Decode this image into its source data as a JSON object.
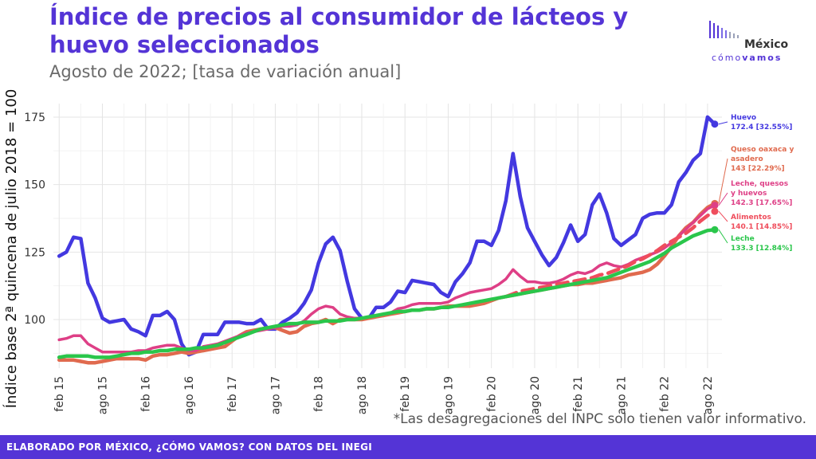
{
  "header": {
    "title": "Índice de precios al consumidor de lácteos y huevo seleccionados",
    "subtitle": "Agosto de 2022; [tasa de variación anual]"
  },
  "logo": {
    "word": "México",
    "sub_a": "cómo",
    "sub_b": "vamos"
  },
  "note": "*Las desagregaciones del INPC solo tienen valor informativo.",
  "footer": {
    "text": "ELABORADO POR MÉXICO, ¿CÓMO VAMOS? CON DATOS DEL INEGI"
  },
  "chart_data": {
    "type": "line",
    "ylabel": "Índice base 2ª quincena de julio 2018 = 100",
    "ylim": [
      82,
      180
    ],
    "yticks": [
      100,
      125,
      150,
      175
    ],
    "xlim": [
      -0.8,
      92
    ],
    "xticks": [
      {
        "label": "feb 15",
        "i": 0
      },
      {
        "label": "ago 15",
        "i": 6
      },
      {
        "label": "feb 16",
        "i": 12
      },
      {
        "label": "ago 16",
        "i": 18
      },
      {
        "label": "feb 17",
        "i": 24
      },
      {
        "label": "ago 17",
        "i": 30
      },
      {
        "label": "feb 18",
        "i": 36
      },
      {
        "label": "ago 18",
        "i": 42
      },
      {
        "label": "feb 19",
        "i": 48
      },
      {
        "label": "ago 19",
        "i": 54
      },
      {
        "label": "feb 20",
        "i": 60
      },
      {
        "label": "ago 20",
        "i": 66
      },
      {
        "label": "feb 21",
        "i": 72
      },
      {
        "label": "ago 21",
        "i": 78
      },
      {
        "label": "feb 22",
        "i": 84
      },
      {
        "label": "ago 22",
        "i": 90
      }
    ],
    "grid": true,
    "series": [
      {
        "name": "Huevo",
        "label_value": "172.4 [32.55%]",
        "color": "#4338e0",
        "width": 4.5,
        "dashed": false,
        "values": [
          123.5,
          125,
          130.5,
          130,
          113.5,
          108,
          100.5,
          99,
          99.5,
          100,
          96.5,
          95.5,
          94,
          101.5,
          101.5,
          103,
          100,
          91,
          87,
          88,
          94.5,
          94.5,
          94.5,
          99,
          99,
          99,
          98.5,
          98.5,
          100,
          96.5,
          96.5,
          99,
          100.5,
          102.5,
          106,
          111,
          121,
          128,
          130.5,
          125.5,
          114,
          104,
          100.5,
          100.5,
          104.5,
          104.5,
          106.5,
          110.5,
          110,
          114.5,
          114,
          113.5,
          113,
          110,
          108.5,
          114,
          117,
          121,
          129,
          129,
          127.5,
          133,
          144,
          161.5,
          145.5,
          134,
          129,
          124,
          120,
          123,
          128.5,
          135,
          129,
          131.5,
          142.5,
          146.5,
          139.5,
          130,
          127.5,
          129.5,
          131.5,
          137.5,
          139,
          139.5,
          139.5,
          142.5,
          151,
          154.5,
          159,
          161.5,
          175,
          172.4
        ]
      },
      {
        "name": "Queso oaxaca y asadero",
        "label_value": "143 [22.29%]",
        "color": "#e06a4e",
        "width": 4.5,
        "dashed": false,
        "values": [
          85,
          85,
          85,
          84.5,
          84,
          84,
          84.5,
          85,
          85.5,
          85.5,
          85.5,
          85.5,
          85,
          86.5,
          87,
          87,
          87.5,
          88,
          87.5,
          88,
          88.5,
          89,
          89.5,
          90,
          92,
          94,
          95.5,
          96,
          96.5,
          97,
          97,
          96,
          95,
          95.5,
          97.5,
          98.5,
          99,
          100,
          98.5,
          100,
          100,
          100,
          100,
          100.5,
          101,
          101.5,
          102,
          102.5,
          103,
          103.5,
          103.5,
          104,
          104,
          104.5,
          105,
          105,
          105,
          105,
          105.5,
          106,
          107,
          108,
          108.5,
          109,
          109.5,
          110,
          110.5,
          111,
          111.5,
          112,
          112.5,
          113,
          113,
          113.5,
          113.5,
          114,
          114.5,
          115,
          115.5,
          116.5,
          117,
          117.5,
          118.5,
          120.5,
          123.5,
          127,
          131,
          134,
          136,
          139,
          141.5,
          143
        ]
      },
      {
        "name": "Leche, quesos y huevos",
        "label_value": "142.3 [17.65%]",
        "color": "#de3f86",
        "width": 3.5,
        "dashed": false,
        "values": [
          92.5,
          93,
          94,
          94,
          91,
          89.5,
          88,
          88,
          88,
          88,
          88,
          88.5,
          88.5,
          89.5,
          90,
          90.5,
          90.5,
          89.5,
          88.5,
          88.5,
          90,
          90.5,
          91,
          92,
          93,
          94,
          95,
          95.5,
          96,
          96.5,
          97,
          97.5,
          97.5,
          98,
          99.5,
          102,
          104,
          105,
          104.5,
          102,
          101,
          100.5,
          100.5,
          101,
          101.5,
          102,
          102.5,
          104,
          104.5,
          105.5,
          106,
          106,
          106,
          106,
          106.5,
          108,
          109,
          110,
          110.5,
          111,
          111.5,
          113,
          115,
          118.5,
          116,
          114,
          114,
          113.5,
          113.5,
          114,
          115,
          116.5,
          117.5,
          117,
          118,
          120,
          121,
          120,
          119.5,
          120.5,
          122,
          123,
          124,
          125,
          126.5,
          128.5,
          131,
          133.5,
          136,
          138.5,
          141,
          142.3
        ]
      },
      {
        "name": "Alimentos",
        "label_value": "140.1 [14.85%]",
        "color": "#ef4d5c",
        "width": 4.5,
        "dashed": true,
        "values": [
          null,
          null,
          null,
          null,
          null,
          null,
          null,
          null,
          null,
          null,
          null,
          null,
          null,
          null,
          null,
          null,
          null,
          null,
          null,
          null,
          null,
          null,
          null,
          null,
          null,
          null,
          null,
          null,
          null,
          null,
          null,
          null,
          null,
          null,
          null,
          null,
          null,
          null,
          null,
          null,
          null,
          null,
          null,
          null,
          null,
          null,
          null,
          null,
          null,
          null,
          null,
          null,
          null,
          null,
          null,
          null,
          null,
          null,
          null,
          null,
          null,
          null,
          108.5,
          109.5,
          110.5,
          111,
          111.5,
          112,
          112.5,
          113,
          113.5,
          114,
          114.5,
          115,
          115.5,
          116.5,
          117,
          118,
          119,
          120,
          121.5,
          122.5,
          124,
          125.5,
          127.5,
          129,
          130.5,
          132,
          134,
          136.5,
          138.5,
          140.1
        ]
      },
      {
        "name": "Leche",
        "label_value": "133.3 [12.84%]",
        "color": "#2ac64b",
        "width": 4.5,
        "dashed": false,
        "values": [
          86,
          86.5,
          86.5,
          86.5,
          86.5,
          86,
          86,
          86,
          86.5,
          87,
          87.5,
          87.5,
          88,
          88,
          88.5,
          88.5,
          89,
          89,
          89,
          89.5,
          89.5,
          90,
          90.5,
          91.5,
          92.5,
          93.5,
          94.5,
          95.5,
          96.5,
          97,
          97.5,
          98,
          98.5,
          98.5,
          99,
          99,
          99,
          99.5,
          99.5,
          99.5,
          100,
          100,
          100.5,
          101,
          101.5,
          102,
          102.5,
          103,
          103,
          103.5,
          103.5,
          104,
          104,
          104.5,
          104.5,
          105,
          105.5,
          106,
          106.5,
          107,
          107.5,
          108,
          108.5,
          109,
          109.5,
          110,
          110.5,
          111,
          111.5,
          112,
          112.5,
          113,
          113.5,
          114,
          114.5,
          115,
          115.5,
          116.5,
          117.5,
          118.5,
          119.5,
          120.5,
          121.5,
          123,
          124.5,
          126.5,
          128,
          129.5,
          131,
          132,
          133,
          133.3
        ]
      }
    ]
  }
}
